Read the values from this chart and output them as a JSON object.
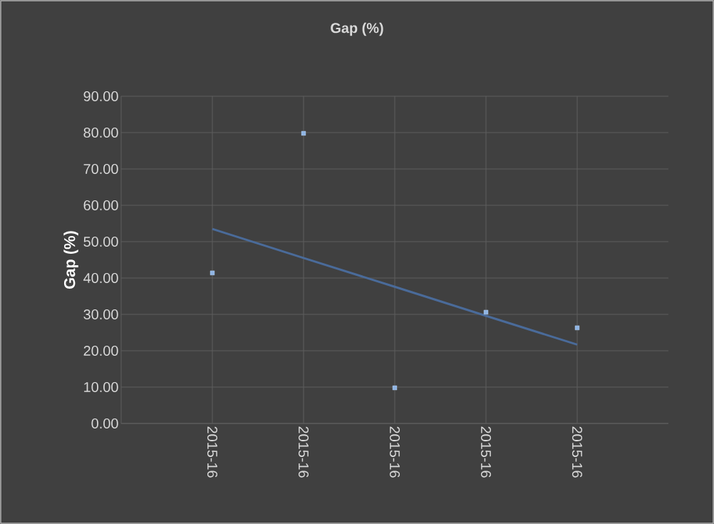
{
  "chart_data": {
    "type": "scatter",
    "title": "Gap (%)",
    "ylabel": "Gap (%)",
    "categories": [
      "2015-16",
      "2015-16",
      "2015-16",
      "2015-16",
      "2015-16"
    ],
    "series": [
      {
        "color": "#8fb4e3",
        "marker": "square",
        "values": [
          41.4,
          79.8,
          9.8,
          30.6,
          26.3
        ]
      },
      {
        "type": "line",
        "color": "#4a6b9a",
        "marker": "none",
        "line_style": "solid",
        "values": [
          53.5,
          45.5,
          37.6,
          29.6,
          21.7
        ]
      }
    ],
    "ylim": [
      0,
      90
    ],
    "yticks": [
      {
        "value": 0,
        "label": "0.00"
      },
      {
        "value": 10,
        "label": "10.00"
      },
      {
        "value": 20,
        "label": "20.00"
      },
      {
        "value": 30,
        "label": "30.00"
      },
      {
        "value": 40,
        "label": "40.00"
      },
      {
        "value": 50,
        "label": "50.00"
      },
      {
        "value": 60,
        "label": "60.00"
      },
      {
        "value": 70,
        "label": "70.00"
      },
      {
        "value": 80,
        "label": "80.00"
      },
      {
        "value": 90,
        "label": "90.00"
      }
    ],
    "grid": true
  }
}
